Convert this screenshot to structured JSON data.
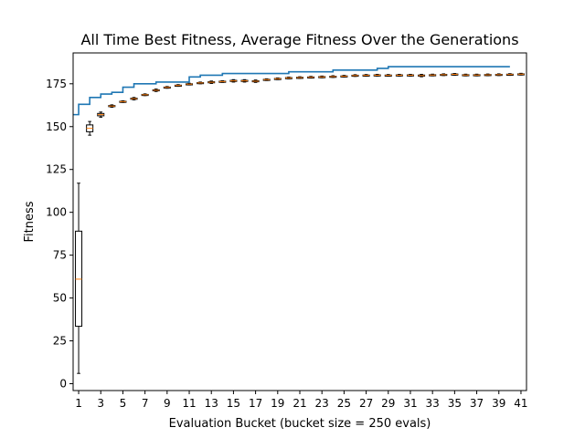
{
  "chart_data": {
    "type": "boxplot+step",
    "title": "All Time Best Fitness, Average Fitness Over the Generations",
    "xlabel": "Evaluation Bucket (bucket size = 250 evals)",
    "ylabel": "Fitness",
    "xlim": [
      0.5,
      41.5
    ],
    "ylim": [
      -4,
      193
    ],
    "x_ticks": [
      1,
      3,
      5,
      7,
      9,
      11,
      13,
      15,
      17,
      19,
      21,
      23,
      25,
      27,
      29,
      31,
      33,
      35,
      37,
      39,
      41
    ],
    "x_tick_labels": [
      "1",
      "3",
      "5",
      "7",
      "9",
      "11",
      "13",
      "15",
      "17",
      "19",
      "21",
      "23",
      "25",
      "27",
      "29",
      "31",
      "33",
      "35",
      "37",
      "39",
      "41"
    ],
    "y_ticks": [
      0,
      25,
      50,
      75,
      100,
      125,
      150,
      175
    ],
    "y_tick_labels": [
      "0",
      "25",
      "50",
      "75",
      "100",
      "125",
      "150",
      "175"
    ],
    "grid": false,
    "colors": {
      "best_line": "#1f77b4",
      "median": "#ff7f0e",
      "box": "#000000"
    },
    "best_fitness": {
      "x": [
        0.5,
        1,
        2,
        3,
        4,
        5,
        6,
        7,
        8,
        9,
        10,
        11,
        12,
        13,
        14,
        15,
        16,
        17,
        18,
        19,
        20,
        21,
        22,
        23,
        24,
        25,
        26,
        27,
        28,
        29,
        30,
        31,
        32,
        33,
        34,
        35,
        36,
        37,
        38,
        39,
        40
      ],
      "values": [
        157,
        163,
        167,
        169,
        170,
        173,
        175,
        175,
        176,
        176,
        176,
        179,
        180,
        180,
        181,
        181,
        181,
        181,
        181,
        181,
        182,
        182,
        182,
        182,
        183,
        183,
        183,
        183,
        184,
        185,
        185,
        185,
        185,
        185,
        185,
        185,
        185,
        185,
        185,
        185,
        185
      ]
    },
    "average_fitness_boxes": [
      {
        "x": 1,
        "whislo": 6,
        "q1": 33.5,
        "med": 61,
        "q3": 89,
        "whishi": 117
      },
      {
        "x": 2,
        "whislo": 145,
        "q1": 147,
        "med": 149,
        "q3": 151,
        "whishi": 153
      },
      {
        "x": 3,
        "whislo": 155.5,
        "q1": 156.3,
        "med": 157,
        "q3": 157.7,
        "whishi": 158.5
      },
      {
        "x": 4,
        "whislo": 161.3,
        "q1": 161.7,
        "med": 162,
        "q3": 162.3,
        "whishi": 162.7
      },
      {
        "x": 5,
        "whislo": 164.1,
        "q1": 164.4,
        "med": 164.6,
        "q3": 164.8,
        "whishi": 165.1
      },
      {
        "x": 6,
        "whislo": 165.6,
        "q1": 166,
        "med": 166.3,
        "q3": 166.6,
        "whishi": 167
      },
      {
        "x": 7,
        "whislo": 168.1,
        "q1": 168.4,
        "med": 168.6,
        "q3": 168.8,
        "whishi": 169.1
      },
      {
        "x": 8,
        "whislo": 170.5,
        "q1": 170.9,
        "med": 171.2,
        "q3": 171.5,
        "whishi": 171.9
      },
      {
        "x": 9,
        "whislo": 172.4,
        "q1": 172.7,
        "med": 172.9,
        "q3": 173.1,
        "whishi": 173.4
      },
      {
        "x": 10,
        "whislo": 173.5,
        "q1": 173.8,
        "med": 174,
        "q3": 174.2,
        "whishi": 174.5
      },
      {
        "x": 11,
        "whislo": 174.3,
        "q1": 174.6,
        "med": 174.8,
        "q3": 175,
        "whishi": 175.3
      },
      {
        "x": 12,
        "whislo": 175,
        "q1": 175.3,
        "med": 175.5,
        "q3": 175.7,
        "whishi": 176
      },
      {
        "x": 13,
        "whislo": 175.2,
        "q1": 175.6,
        "med": 175.9,
        "q3": 176.2,
        "whishi": 176.6
      },
      {
        "x": 14,
        "whislo": 175.8,
        "q1": 176.1,
        "med": 176.3,
        "q3": 176.5,
        "whishi": 176.8
      },
      {
        "x": 15,
        "whislo": 176,
        "q1": 176.4,
        "med": 176.7,
        "q3": 177,
        "whishi": 177.4
      },
      {
        "x": 16,
        "whislo": 176,
        "q1": 176.4,
        "med": 176.7,
        "q3": 177,
        "whishi": 177.4
      },
      {
        "x": 17,
        "whislo": 175.8,
        "q1": 176.2,
        "med": 176.5,
        "q3": 176.8,
        "whishi": 177.2
      },
      {
        "x": 18,
        "whislo": 176.9,
        "q1": 177.2,
        "med": 177.4,
        "q3": 177.6,
        "whishi": 177.9
      },
      {
        "x": 19,
        "whislo": 177.4,
        "q1": 177.7,
        "med": 177.9,
        "q3": 178.1,
        "whishi": 178.4
      },
      {
        "x": 20,
        "whislo": 177.9,
        "q1": 178.2,
        "med": 178.4,
        "q3": 178.6,
        "whishi": 178.9
      },
      {
        "x": 21,
        "whislo": 178.1,
        "q1": 178.4,
        "med": 178.6,
        "q3": 178.8,
        "whishi": 179.1
      },
      {
        "x": 22,
        "whislo": 178.3,
        "q1": 178.6,
        "med": 178.8,
        "q3": 179,
        "whishi": 179.3
      },
      {
        "x": 23,
        "whislo": 178.5,
        "q1": 178.8,
        "med": 179,
        "q3": 179.2,
        "whishi": 179.5
      },
      {
        "x": 24,
        "whislo": 178.7,
        "q1": 179,
        "med": 179.2,
        "q3": 179.4,
        "whishi": 179.7
      },
      {
        "x": 25,
        "whislo": 178.9,
        "q1": 179.2,
        "med": 179.4,
        "q3": 179.6,
        "whishi": 179.9
      },
      {
        "x": 26,
        "whislo": 179.3,
        "q1": 179.6,
        "med": 179.8,
        "q3": 180,
        "whishi": 180.3
      },
      {
        "x": 27,
        "whislo": 179.4,
        "q1": 179.7,
        "med": 179.9,
        "q3": 180.1,
        "whishi": 180.4
      },
      {
        "x": 28,
        "whislo": 179.5,
        "q1": 179.8,
        "med": 180,
        "q3": 180.2,
        "whishi": 180.5
      },
      {
        "x": 29,
        "whislo": 179.4,
        "q1": 179.7,
        "med": 179.9,
        "q3": 180.1,
        "whishi": 180.4
      },
      {
        "x": 30,
        "whislo": 179.5,
        "q1": 179.8,
        "med": 180,
        "q3": 180.2,
        "whishi": 180.5
      },
      {
        "x": 31,
        "whislo": 179.5,
        "q1": 179.8,
        "med": 180,
        "q3": 180.2,
        "whishi": 180.5
      },
      {
        "x": 32,
        "whislo": 179.1,
        "q1": 179.5,
        "med": 179.8,
        "q3": 180.1,
        "whishi": 180.5
      },
      {
        "x": 33,
        "whislo": 179.6,
        "q1": 179.9,
        "med": 180.1,
        "q3": 180.3,
        "whishi": 180.6
      },
      {
        "x": 34,
        "whislo": 179.8,
        "q1": 180.1,
        "med": 180.3,
        "q3": 180.5,
        "whishi": 180.8
      },
      {
        "x": 35,
        "whislo": 180,
        "q1": 180.3,
        "med": 180.5,
        "q3": 180.7,
        "whishi": 181
      },
      {
        "x": 36,
        "whislo": 179.6,
        "q1": 179.9,
        "med": 180.1,
        "q3": 180.3,
        "whishi": 180.6
      },
      {
        "x": 37,
        "whislo": 179.6,
        "q1": 179.9,
        "med": 180.1,
        "q3": 180.3,
        "whishi": 180.6
      },
      {
        "x": 38,
        "whislo": 179.7,
        "q1": 180,
        "med": 180.2,
        "q3": 180.4,
        "whishi": 180.7
      },
      {
        "x": 39,
        "whislo": 179.8,
        "q1": 180.1,
        "med": 180.3,
        "q3": 180.5,
        "whishi": 180.8
      },
      {
        "x": 40,
        "whislo": 179.9,
        "q1": 180.2,
        "med": 180.4,
        "q3": 180.6,
        "whishi": 180.9
      },
      {
        "x": 41,
        "whislo": 180.1,
        "q1": 180.4,
        "med": 180.6,
        "q3": 180.8,
        "whishi": 181.1
      }
    ]
  }
}
